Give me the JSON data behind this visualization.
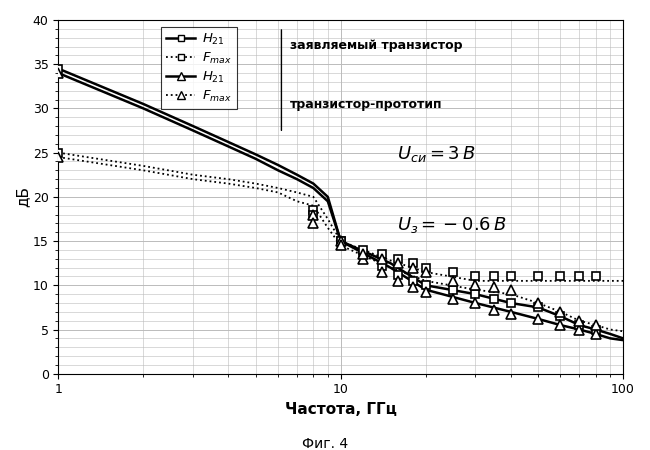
{
  "xlabel": "Частота, ГГц",
  "ylabel": "дБ",
  "caption": "Фиг. 4",
  "annotation1": "заявляемый транзистор",
  "annotation2": "транзистор-прототип",
  "xlim": [
    1,
    100
  ],
  "ylim": [
    0,
    40
  ],
  "yticks": [
    0,
    5,
    10,
    15,
    20,
    25,
    30,
    35,
    40
  ],
  "H21_new_x": [
    1,
    8,
    10,
    12,
    14,
    16,
    18,
    20,
    25,
    30,
    35,
    40,
    50,
    60,
    70,
    80
  ],
  "H21_new_y": [
    34.5,
    18.5,
    15.0,
    13.5,
    12.2,
    11.2,
    10.5,
    10.0,
    9.5,
    9.0,
    8.5,
    8.0,
    7.5,
    6.5,
    5.5,
    5.0
  ],
  "Fmax_new_x": [
    1,
    8,
    10,
    12,
    14,
    16,
    18,
    20,
    25,
    30,
    35,
    40,
    50,
    60,
    70,
    80
  ],
  "Fmax_new_y": [
    25.0,
    18.0,
    15.0,
    14.0,
    13.5,
    13.0,
    12.5,
    12.0,
    11.5,
    11.0,
    11.0,
    11.0,
    11.0,
    11.0,
    11.0,
    11.0
  ],
  "H21_proto_x": [
    1,
    8,
    10,
    12,
    14,
    16,
    18,
    20,
    25,
    30,
    35,
    40,
    50,
    60,
    70,
    80
  ],
  "H21_proto_y": [
    34.0,
    18.0,
    15.0,
    13.0,
    11.5,
    10.5,
    9.8,
    9.2,
    8.5,
    8.0,
    7.2,
    6.8,
    6.2,
    5.5,
    5.0,
    4.5
  ],
  "Fmax_proto_x": [
    1,
    8,
    10,
    12,
    14,
    16,
    18,
    20,
    25,
    30,
    35,
    40,
    50,
    60,
    70,
    80
  ],
  "Fmax_proto_y": [
    24.5,
    17.0,
    14.5,
    13.5,
    13.0,
    12.5,
    12.0,
    11.5,
    10.5,
    10.0,
    9.8,
    9.5,
    8.0,
    7.0,
    6.0,
    5.5
  ],
  "H21_new_smooth_x": [
    1,
    2,
    3,
    4,
    5,
    6,
    7,
    8,
    9,
    10,
    15,
    20,
    30,
    40,
    50,
    60,
    70,
    80,
    90,
    100
  ],
  "H21_new_smooth_y": [
    34.5,
    30.5,
    28.0,
    26.2,
    24.8,
    23.6,
    22.5,
    21.5,
    20.0,
    15.0,
    12.5,
    10.0,
    9.0,
    8.0,
    7.5,
    6.5,
    5.5,
    5.0,
    4.5,
    4.0
  ],
  "Fmax_new_smooth_x": [
    1,
    2,
    3,
    4,
    5,
    6,
    7,
    8,
    9,
    10,
    15,
    20,
    30,
    40,
    50,
    60,
    70,
    80,
    90,
    100
  ],
  "Fmax_new_smooth_y": [
    25.0,
    23.5,
    22.5,
    22.0,
    21.5,
    21.0,
    20.5,
    20.0,
    17.5,
    15.0,
    12.8,
    11.5,
    10.5,
    10.5,
    10.5,
    10.5,
    10.5,
    10.5,
    10.5,
    10.5
  ],
  "H21_proto_smooth_x": [
    1,
    2,
    3,
    4,
    5,
    6,
    7,
    8,
    9,
    10,
    15,
    20,
    30,
    40,
    50,
    60,
    70,
    80,
    90,
    100
  ],
  "H21_proto_smooth_y": [
    34.0,
    30.0,
    27.5,
    25.7,
    24.3,
    23.0,
    22.0,
    21.0,
    19.5,
    15.0,
    12.0,
    9.5,
    8.0,
    7.0,
    6.2,
    5.5,
    5.0,
    4.5,
    4.0,
    3.8
  ],
  "Fmax_proto_smooth_x": [
    1,
    2,
    3,
    4,
    5,
    6,
    7,
    8,
    9,
    10,
    15,
    20,
    30,
    40,
    50,
    60,
    70,
    80,
    90,
    100
  ],
  "Fmax_proto_smooth_y": [
    24.5,
    23.0,
    22.0,
    21.5,
    21.0,
    20.5,
    19.5,
    19.0,
    16.5,
    14.5,
    12.0,
    10.5,
    9.5,
    9.0,
    8.0,
    7.0,
    6.0,
    5.5,
    5.0,
    4.8
  ],
  "bg_color": "#ffffff",
  "grid_color": "#bbbbbb"
}
